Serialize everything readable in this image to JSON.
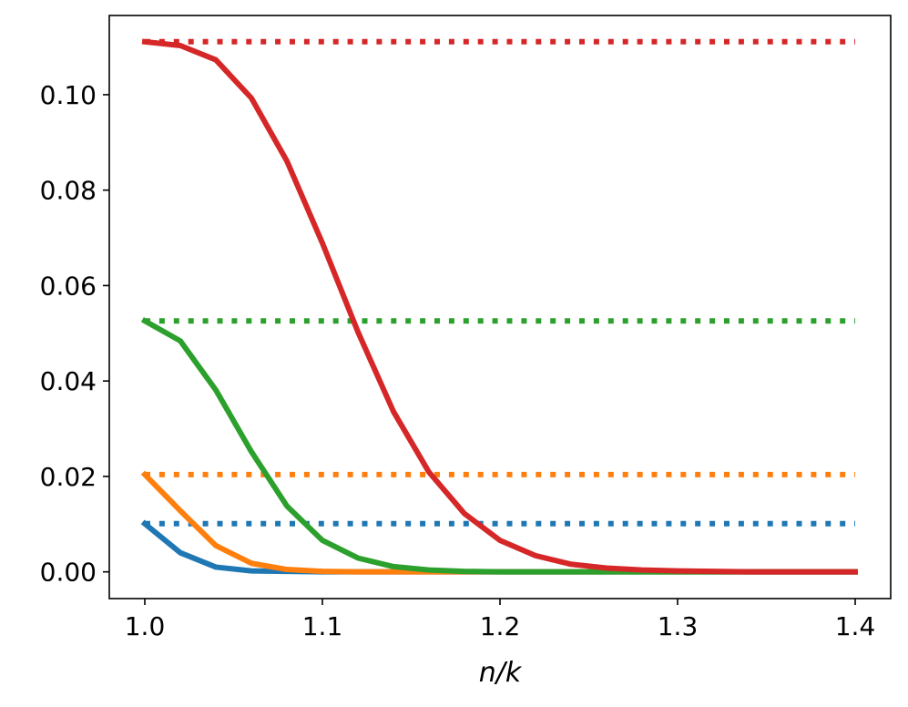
{
  "chart_data": {
    "type": "line",
    "title": "",
    "xlabel": "n/k",
    "ylabel": "",
    "xlim": [
      0.98,
      1.42
    ],
    "ylim": [
      -0.0056,
      0.1166
    ],
    "xticks": [
      1.0,
      1.1,
      1.2,
      1.3,
      1.4
    ],
    "xtick_labels": [
      "1.0",
      "1.1",
      "1.2",
      "1.3",
      "1.4"
    ],
    "yticks": [
      0.0,
      0.02,
      0.04,
      0.06,
      0.08,
      0.1
    ],
    "ytick_labels": [
      "0.00",
      "0.02",
      "0.04",
      "0.06",
      "0.08",
      "0.10"
    ],
    "grid": false,
    "legend": "none",
    "x": [
      1.0,
      1.02,
      1.04,
      1.06,
      1.08,
      1.1,
      1.12,
      1.14,
      1.16,
      1.18,
      1.2,
      1.22,
      1.24,
      1.26,
      1.28,
      1.3,
      1.32,
      1.34,
      1.36,
      1.38,
      1.4
    ],
    "series": [
      {
        "color": "#1f77b4",
        "style": "solid",
        "values": [
          0.0101,
          0.004,
          0.001,
          0.0002,
          0.0001,
          0,
          0,
          0,
          0,
          0,
          0,
          0,
          0,
          0,
          0,
          0,
          0,
          0,
          0,
          0,
          0
        ]
      },
      {
        "color": "#1f77b4",
        "style": "dotted",
        "values": [
          0.0101,
          0.0101,
          0.0101,
          0.0101,
          0.0101,
          0.0101,
          0.0101,
          0.0101,
          0.0101,
          0.0101,
          0.0101,
          0.0101,
          0.0101,
          0.0101,
          0.0101,
          0.0101,
          0.0101,
          0.0101,
          0.0101,
          0.0101,
          0.0101
        ]
      },
      {
        "color": "#ff7f0e",
        "style": "solid",
        "values": [
          0.0204,
          0.0128,
          0.0055,
          0.0018,
          0.0005,
          0.0001,
          0,
          0,
          0,
          0,
          0,
          0,
          0,
          0,
          0,
          0,
          0,
          0,
          0,
          0,
          0
        ]
      },
      {
        "color": "#ff7f0e",
        "style": "dotted",
        "values": [
          0.0204,
          0.0204,
          0.0204,
          0.0204,
          0.0204,
          0.0204,
          0.0204,
          0.0204,
          0.0204,
          0.0204,
          0.0204,
          0.0204,
          0.0204,
          0.0204,
          0.0204,
          0.0204,
          0.0204,
          0.0204,
          0.0204,
          0.0204,
          0.0204
        ]
      },
      {
        "color": "#2ca02c",
        "style": "solid",
        "values": [
          0.0526,
          0.0484,
          0.0381,
          0.0252,
          0.0138,
          0.0066,
          0.0029,
          0.0011,
          0.0004,
          0.0001,
          0,
          0,
          0,
          0,
          0,
          0,
          0,
          0,
          0,
          0,
          0
        ]
      },
      {
        "color": "#2ca02c",
        "style": "dotted",
        "values": [
          0.0526,
          0.0526,
          0.0526,
          0.0526,
          0.0526,
          0.0526,
          0.0526,
          0.0526,
          0.0526,
          0.0526,
          0.0526,
          0.0526,
          0.0526,
          0.0526,
          0.0526,
          0.0526,
          0.0526,
          0.0526,
          0.0526,
          0.0526,
          0.0526
        ]
      },
      {
        "color": "#d62728",
        "style": "solid",
        "values": [
          0.1111,
          0.1103,
          0.1073,
          0.0993,
          0.0861,
          0.0689,
          0.0503,
          0.0336,
          0.0209,
          0.0122,
          0.0066,
          0.0034,
          0.0016,
          0.0008,
          0.0004,
          0.0002,
          0.0001,
          0,
          0,
          0,
          0
        ]
      },
      {
        "color": "#d62728",
        "style": "dotted",
        "values": [
          0.1111,
          0.1111,
          0.1111,
          0.1111,
          0.1111,
          0.1111,
          0.1111,
          0.1111,
          0.1111,
          0.1111,
          0.1111,
          0.1111,
          0.1111,
          0.1111,
          0.1111,
          0.1111,
          0.1111,
          0.1111,
          0.1111,
          0.1111,
          0.1111
        ]
      }
    ]
  }
}
